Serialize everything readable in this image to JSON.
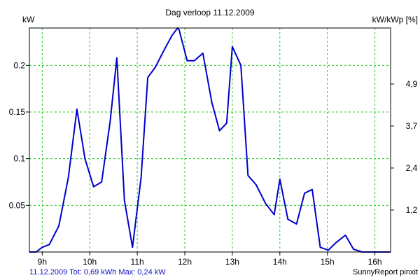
{
  "chart_data": {
    "type": "line",
    "title": "Dag  verloop 11.12.2009",
    "left_axis_label": "kW",
    "right_axis_label": "kW/kWp [%]",
    "x_tick_labels": [
      "9h",
      "10h",
      "11h",
      "12h",
      "13h",
      "14h",
      "15h",
      "16h"
    ],
    "x_ticks_hours": [
      9,
      10,
      11,
      12,
      13,
      14,
      15,
      16
    ],
    "x_range_hours": [
      8.73,
      16.33
    ],
    "y_ticks": [
      0.05,
      0.1,
      0.15,
      0.2
    ],
    "y_tick_labels": [
      "0.05",
      "0.1",
      "0.15",
      "0.2"
    ],
    "y_range": [
      0,
      0.24
    ],
    "right_ticks_at_y": [
      0.045,
      0.09,
      0.135,
      0.18
    ],
    "right_tick_labels": [
      "1,2",
      "2,4",
      "3,7",
      "4,9"
    ],
    "grid": true,
    "grid_color": "#22cc22",
    "line_color": "#0000cc",
    "series": [
      {
        "x": [
          8.73,
          8.87,
          9.0,
          9.15,
          9.35,
          9.55,
          9.73,
          9.9,
          10.08,
          10.25,
          10.43,
          10.57,
          10.73,
          10.9,
          11.08,
          11.22,
          11.38,
          11.55,
          11.73,
          11.85,
          11.88,
          12.05,
          12.2,
          12.38,
          12.57,
          12.73,
          12.88,
          13.0,
          13.18,
          13.33,
          13.5,
          13.7,
          13.88,
          14.0,
          14.17,
          14.35,
          14.52,
          14.68,
          14.85,
          15.02,
          15.18,
          15.38,
          15.55,
          15.73,
          15.9,
          16.07,
          16.33
        ],
        "y": [
          0.0,
          0.0,
          0.005,
          0.008,
          0.028,
          0.08,
          0.153,
          0.1,
          0.07,
          0.075,
          0.14,
          0.208,
          0.055,
          0.005,
          0.08,
          0.187,
          0.198,
          0.215,
          0.232,
          0.24,
          0.238,
          0.205,
          0.205,
          0.213,
          0.16,
          0.13,
          0.138,
          0.22,
          0.2,
          0.082,
          0.072,
          0.052,
          0.04,
          0.078,
          0.035,
          0.03,
          0.063,
          0.067,
          0.005,
          0.002,
          0.01,
          0.018,
          0.003,
          0.0,
          0.0,
          0.0,
          0.0
        ]
      }
    ]
  },
  "footer": {
    "left": "11.12.2009 Tot: 0,69 kWh Max: 0,24 kW",
    "right": "SunnyReport pinxit"
  }
}
